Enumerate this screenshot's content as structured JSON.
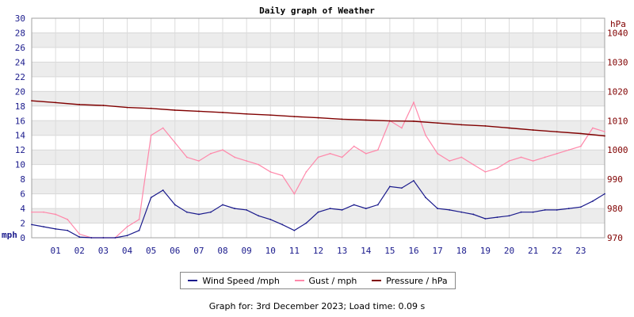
{
  "chart_data": {
    "type": "line",
    "title": "Daily graph of Weather",
    "y_left_label": "mph",
    "y_right_label": "hPa",
    "ylim_left": [
      0,
      30
    ],
    "ylim_right": [
      970,
      1045
    ],
    "y_left_ticks": [
      0,
      2,
      4,
      6,
      8,
      10,
      12,
      14,
      16,
      18,
      20,
      22,
      24,
      26,
      28,
      30
    ],
    "y_right_ticks": [
      970,
      980,
      990,
      1000,
      1010,
      1020,
      1030,
      1040
    ],
    "x_ticks": [
      "01",
      "02",
      "03",
      "04",
      "05",
      "06",
      "07",
      "08",
      "09",
      "10",
      "11",
      "12",
      "13",
      "14",
      "15",
      "16",
      "17",
      "18",
      "19",
      "20",
      "21",
      "22",
      "23"
    ],
    "xlim_hours": [
      0,
      24
    ],
    "grid": true,
    "legend_position": "bottom-center",
    "series": [
      {
        "name": "Wind Speed /mph",
        "axis": "left",
        "color": "#1a1a8c",
        "x": [
          0,
          0.5,
          1,
          1.5,
          2,
          2.5,
          3,
          3.5,
          4,
          4.5,
          5,
          5.5,
          6,
          6.5,
          7,
          7.5,
          8,
          8.5,
          9,
          9.5,
          10,
          10.5,
          11,
          11.5,
          12,
          12.5,
          13,
          13.5,
          14,
          14.5,
          15,
          15.5,
          16,
          16.5,
          17,
          17.5,
          18,
          18.5,
          19,
          19.5,
          20,
          20.5,
          21,
          21.5,
          22,
          22.5,
          23,
          23.5,
          24
        ],
        "values": [
          1.8,
          1.5,
          1.2,
          1.0,
          0.1,
          0.0,
          0.0,
          0.0,
          0.3,
          1.0,
          5.5,
          6.5,
          4.5,
          3.5,
          3.2,
          3.5,
          4.5,
          4.0,
          3.8,
          3.0,
          2.5,
          1.8,
          1.0,
          2.0,
          3.5,
          4.0,
          3.8,
          4.5,
          4.0,
          4.5,
          7.0,
          6.8,
          7.8,
          5.5,
          4.0,
          3.8,
          3.5,
          3.2,
          2.6,
          2.8,
          3.0,
          3.5,
          3.5,
          3.8,
          3.8,
          4.0,
          4.2,
          5.0,
          6.0
        ]
      },
      {
        "name": "Gust / mph",
        "axis": "left",
        "color": "#ff88aa",
        "x": [
          0,
          0.5,
          1,
          1.5,
          2,
          2.5,
          3,
          3.5,
          4,
          4.5,
          5,
          5.5,
          6,
          6.5,
          7,
          7.5,
          8,
          8.5,
          9,
          9.5,
          10,
          10.5,
          11,
          11.5,
          12,
          12.5,
          13,
          13.5,
          14,
          14.5,
          15,
          15.5,
          16,
          16.5,
          17,
          17.5,
          18,
          18.5,
          19,
          19.5,
          20,
          20.5,
          21,
          21.5,
          22,
          22.5,
          23,
          23.5,
          24
        ],
        "values": [
          3.5,
          3.5,
          3.2,
          2.5,
          0.5,
          0.0,
          0.0,
          0.0,
          1.5,
          2.5,
          14.0,
          15.0,
          13.0,
          11.0,
          10.5,
          11.5,
          12.0,
          11.0,
          10.5,
          10.0,
          9.0,
          8.5,
          6.0,
          9.0,
          11.0,
          11.5,
          11.0,
          12.5,
          11.5,
          12.0,
          16.0,
          15.0,
          18.5,
          14.0,
          11.5,
          10.5,
          11.0,
          10.0,
          9.0,
          9.5,
          10.5,
          11.0,
          10.5,
          11.0,
          11.5,
          12.0,
          12.5,
          15.0,
          14.5
        ]
      },
      {
        "name": "Pressure / hPa",
        "axis": "right",
        "color": "#800000",
        "x": [
          0,
          1,
          2,
          3,
          4,
          5,
          6,
          7,
          8,
          9,
          10,
          11,
          12,
          13,
          14,
          15,
          16,
          17,
          18,
          19,
          20,
          21,
          22,
          23,
          24
        ],
        "values": [
          1016.8,
          1016.2,
          1015.5,
          1015.2,
          1014.5,
          1014.2,
          1013.6,
          1013.2,
          1012.8,
          1012.3,
          1011.9,
          1011.4,
          1011.0,
          1010.5,
          1010.2,
          1009.9,
          1009.8,
          1009.2,
          1008.6,
          1008.2,
          1007.5,
          1006.8,
          1006.2,
          1005.6,
          1004.8
        ]
      }
    ]
  },
  "legend": {
    "items": [
      {
        "label": "Wind Speed /mph",
        "color": "#1a1a8c"
      },
      {
        "label": "Gust / mph",
        "color": "#ff88aa"
      },
      {
        "label": "Pressure / hPa",
        "color": "#800000"
      }
    ]
  },
  "footer": {
    "text": "Graph for: 3rd December 2023; Load time: 0.09 s"
  }
}
